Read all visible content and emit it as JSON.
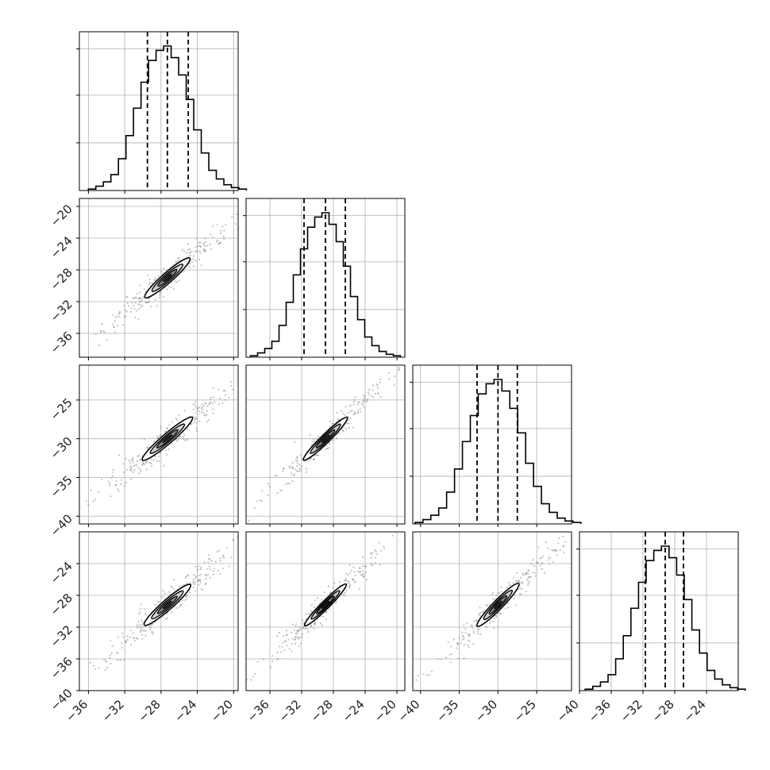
{
  "chart_data": {
    "type": "corner",
    "title": "",
    "grid": true,
    "n_params": 4,
    "ranges": [
      [
        -37,
        -19.5
      ],
      [
        -39,
        -19
      ],
      [
        -41,
        -20.5
      ],
      [
        -40,
        -20
      ]
    ],
    "axis_ticks": [
      [
        -36,
        -32,
        -28,
        -24,
        -20
      ],
      [
        -36,
        -32,
        -28,
        -24,
        -20
      ],
      [
        -40,
        -35,
        -30,
        -25
      ],
      [
        -40,
        -36,
        -32,
        -28,
        -24
      ]
    ],
    "y_ticks": [
      [],
      [
        -20,
        -24,
        -28,
        -32,
        -36
      ],
      [
        -25,
        -30,
        -35,
        -40
      ],
      [
        -24,
        -28,
        -32,
        -36,
        -40
      ]
    ],
    "quantiles": [
      [
        -29.5,
        -27.3,
        -25.0
      ],
      [
        -31.7,
        -29.0,
        -26.5
      ],
      [
        -32.7,
        -30.0,
        -27.5
      ],
      [
        -31.7,
        -29.2,
        -26.9
      ]
    ],
    "histograms": [
      {
        "param": 1,
        "bin_width": 0.83,
        "counts": [
          1,
          3,
          6,
          11,
          22,
          38,
          57,
          75,
          90,
          97,
          100,
          92,
          80,
          63,
          42,
          26,
          14,
          8,
          4,
          2,
          1
        ]
      },
      {
        "param": 2,
        "bin_width": 0.9,
        "counts": [
          1,
          3,
          6,
          11,
          22,
          38,
          57,
          75,
          90,
          97,
          100,
          92,
          80,
          63,
          42,
          26,
          14,
          8,
          4,
          2,
          1
        ]
      },
      {
        "param": 3,
        "bin_width": 1.02,
        "counts": [
          1,
          3,
          6,
          11,
          22,
          38,
          57,
          75,
          90,
          97,
          100,
          92,
          80,
          63,
          42,
          26,
          14,
          8,
          4,
          2,
          1
        ]
      },
      {
        "param": 4,
        "bin_width": 0.96,
        "counts": [
          1,
          3,
          6,
          11,
          22,
          38,
          57,
          75,
          90,
          97,
          100,
          92,
          80,
          63,
          42,
          26,
          14,
          8,
          4,
          2,
          1
        ]
      }
    ],
    "pair_panels": [
      {
        "x": 1,
        "y": 2,
        "mean": [
          -27.3,
          -29.0
        ],
        "major_len": 7.0,
        "minor_len": 1.2
      },
      {
        "x": 1,
        "y": 3,
        "mean": [
          -27.3,
          -30.0
        ],
        "major_len": 7.8,
        "minor_len": 1.2
      },
      {
        "x": 1,
        "y": 4,
        "mean": [
          -27.3,
          -29.2
        ],
        "major_len": 7.2,
        "minor_len": 1.2
      },
      {
        "x": 2,
        "y": 3,
        "mean": [
          -29.0,
          -30.0
        ],
        "major_len": 7.8,
        "minor_len": 1.1
      },
      {
        "x": 2,
        "y": 4,
        "mean": [
          -29.0,
          -29.2
        ],
        "major_len": 7.4,
        "minor_len": 1.0
      },
      {
        "x": 3,
        "y": 4,
        "mean": [
          -30.0,
          -29.2
        ],
        "major_len": 7.6,
        "minor_len": 1.2
      }
    ],
    "colors": {
      "line": "#000000",
      "grid": "#b0b0b0",
      "scatter": "#888888",
      "fill_outer": "#ffffff",
      "fill_mid": "#cfcfcf",
      "fill_inner": "#8a8a8a",
      "fill_core": "#3a3a3a"
    }
  }
}
